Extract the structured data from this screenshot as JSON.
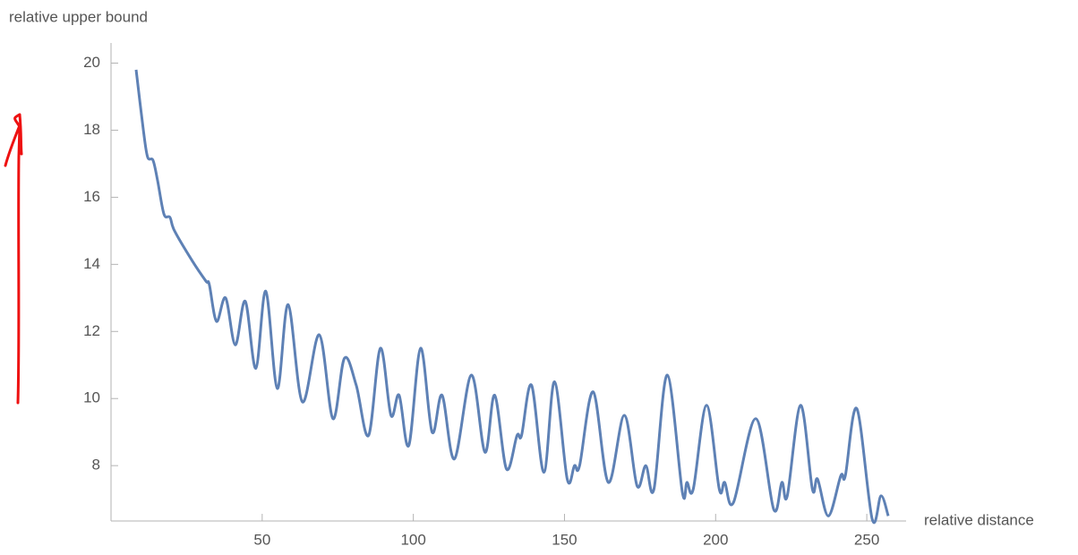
{
  "chart_data": {
    "type": "line",
    "y_label": "relative upper bound",
    "x_label": "relative distance",
    "xlim": [
      0,
      263
    ],
    "ylim": [
      6.35,
      20.6
    ],
    "xticks": [
      50,
      100,
      150,
      200,
      250
    ],
    "yticks": [
      8,
      10,
      12,
      14,
      16,
      18,
      20
    ],
    "color": "#5e81b5",
    "x": [
      8.3,
      10.7,
      12.1,
      13.9,
      15.4,
      17.5,
      19.5,
      21,
      26.9,
      31.4,
      32.5,
      34.9,
      37.9,
      41.1,
      44.4,
      47.9,
      51.2,
      55,
      58.6,
      63.3,
      68.9,
      73.4,
      77.2,
      81.1,
      85.2,
      89.1,
      92.6,
      95.3,
      98.5,
      102.4,
      106.2,
      109.5,
      113.6,
      119.2,
      123.7,
      126.9,
      130.8,
      134.3,
      135.8,
      139.1,
      143.2,
      146.7,
      150.9,
      153.3,
      155,
      159.5,
      164.5,
      169.8,
      174,
      176.9,
      179.6,
      184,
      189,
      190.5,
      192.6,
      197,
      201.2,
      203,
      205.9,
      213.3,
      219.2,
      221.9,
      223.7,
      228.1,
      232,
      233.7,
      237.3,
      241.4,
      242.9,
      246.7,
      251.8,
      254.7,
      257.1
    ],
    "values": [
      19.8,
      18.0,
      17.2,
      17.1,
      16.5,
      15.5,
      15.4,
      15.0,
      14.1,
      13.5,
      13.4,
      12.3,
      13.0,
      11.6,
      12.9,
      10.9,
      13.2,
      10.3,
      12.8,
      9.9,
      11.9,
      9.4,
      11.2,
      10.4,
      8.9,
      11.5,
      9.5,
      10.1,
      8.6,
      11.5,
      9.0,
      10.1,
      8.2,
      10.7,
      8.4,
      10.1,
      7.9,
      8.9,
      8.9,
      10.4,
      7.8,
      10.5,
      7.6,
      8.0,
      8.0,
      10.2,
      7.5,
      9.5,
      7.4,
      8.0,
      7.3,
      10.7,
      7.2,
      7.5,
      7.3,
      9.8,
      7.3,
      7.5,
      6.9,
      9.4,
      6.7,
      7.5,
      7.1,
      9.8,
      7.3,
      7.6,
      6.5,
      7.7,
      7.7,
      9.7,
      6.4,
      7.1,
      6.5
    ]
  }
}
